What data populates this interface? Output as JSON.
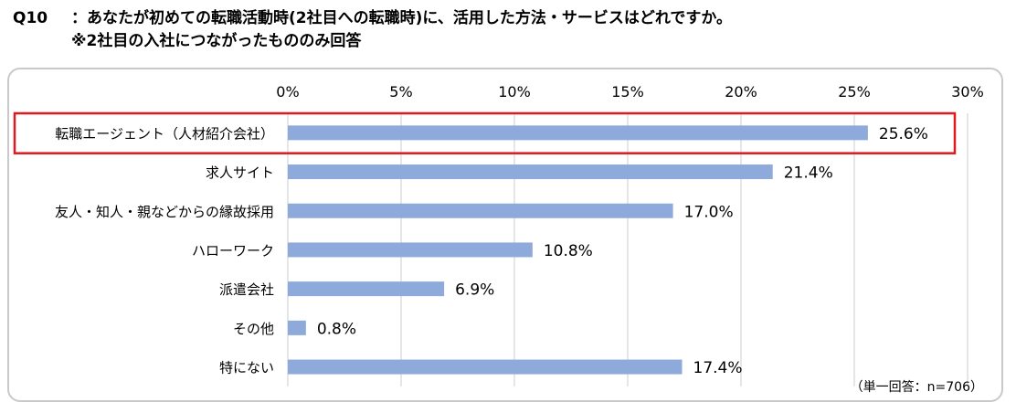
{
  "header": {
    "question_no": "Q10",
    "title": "：あなたが初めての転職活動時(2社目への転職時)に、活用した方法・サービスはどれですか。",
    "subtitle": "※2社目の入社につながったもののみ回答"
  },
  "note": "（単一回答：n=706）",
  "colors": {
    "bar": "#8eaadb",
    "grid": "#d9d9d9",
    "highlight": "#e0191e",
    "frame": "#c9c9c9"
  },
  "chart_data": {
    "type": "bar",
    "orientation": "horizontal",
    "categories": [
      "転職エージェント（人材紹介会社）",
      "求人サイト",
      "友人・知人・親などからの縁故採用",
      "ハローワーク",
      "派遣会社",
      "その他",
      "特にない"
    ],
    "values": [
      25.6,
      21.4,
      17.0,
      10.8,
      6.9,
      0.8,
      17.4
    ],
    "value_labels": [
      "25.6%",
      "21.4%",
      "17.0%",
      "10.8%",
      "6.9%",
      "0.8%",
      "17.4%"
    ],
    "xlim": [
      0,
      30
    ],
    "x_ticks": [
      0,
      5,
      10,
      15,
      20,
      25,
      30
    ],
    "x_tick_labels": [
      "0%",
      "5%",
      "10%",
      "15%",
      "20%",
      "25%",
      "30%"
    ],
    "highlighted_category": "転職エージェント（人材紹介会社）",
    "grid": true,
    "legend": "none"
  }
}
